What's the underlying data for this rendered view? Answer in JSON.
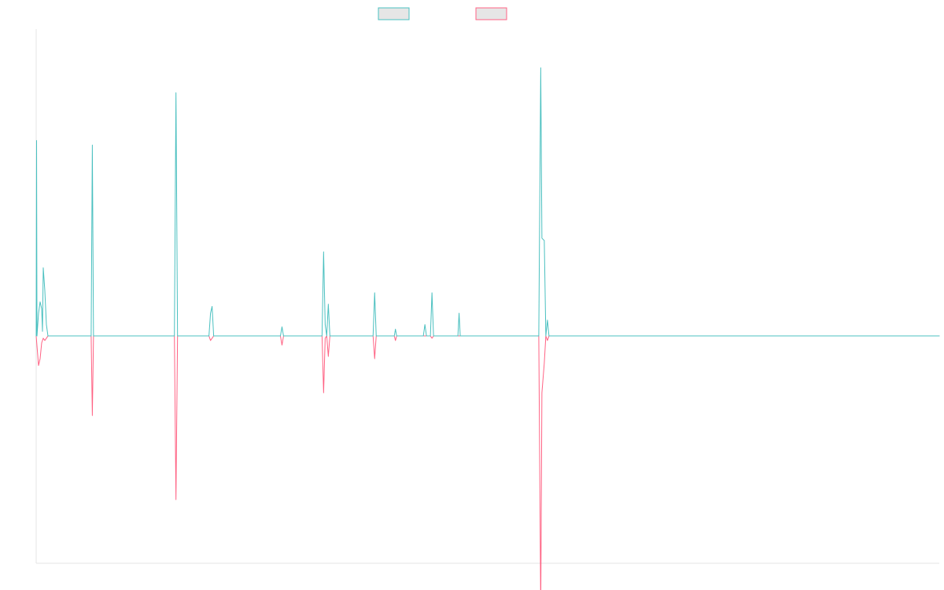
{
  "colors": {
    "series_a": "#4bc0c0",
    "series_b": "#ff6384"
  },
  "chart_data": {
    "type": "line",
    "title": "",
    "xlabel": "",
    "ylabel": "",
    "grid": false,
    "legend_position": "top-center",
    "xlim": [
      0,
      1150
    ],
    "ylim": [
      -1,
      1.35
    ],
    "series": [
      {
        "color": "#4bc0c0",
        "points": [
          [
            0,
            0
          ],
          [
            0.5,
            0.86
          ],
          [
            1,
            0
          ],
          [
            3,
            0.1
          ],
          [
            5,
            0.15
          ],
          [
            7,
            0.12
          ],
          [
            8,
            0.02
          ],
          [
            9,
            0.3
          ],
          [
            11,
            0.2
          ],
          [
            13,
            0.05
          ],
          [
            15,
            0
          ],
          [
            70,
            0
          ],
          [
            71.5,
            0.84
          ],
          [
            73,
            0
          ],
          [
            176,
            0
          ],
          [
            178,
            1.07
          ],
          [
            180,
            0
          ],
          [
            220,
            0
          ],
          [
            222,
            0.1
          ],
          [
            224,
            0.13
          ],
          [
            226,
            0
          ],
          [
            311,
            0
          ],
          [
            313,
            0.04
          ],
          [
            315,
            0
          ],
          [
            364,
            0
          ],
          [
            366,
            0.37
          ],
          [
            368,
            0.05
          ],
          [
            370,
            0
          ],
          [
            372,
            0.14
          ],
          [
            374,
            0
          ],
          [
            429,
            0
          ],
          [
            431,
            0.19
          ],
          [
            433,
            0
          ],
          [
            456,
            0
          ],
          [
            457.5,
            0.03
          ],
          [
            459,
            0
          ],
          [
            483,
            0
          ],
          [
            487,
            0
          ],
          [
            493,
            0
          ],
          [
            495,
            0.05
          ],
          [
            497,
            0
          ],
          [
            502,
            0
          ],
          [
            504,
            0.19
          ],
          [
            506,
            0
          ],
          [
            537,
            0
          ],
          [
            538.5,
            0.1
          ],
          [
            540,
            0
          ],
          [
            640,
            0
          ],
          [
            642.5,
            1.18
          ],
          [
            644,
            0.43
          ],
          [
            647,
            0.42
          ],
          [
            649,
            0
          ],
          [
            651,
            0.07
          ],
          [
            653,
            0
          ],
          [
            1150,
            0
          ]
        ]
      },
      {
        "color": "#ff6384",
        "points": [
          [
            0,
            0
          ],
          [
            3,
            -0.13
          ],
          [
            5,
            -0.1
          ],
          [
            7,
            -0.03
          ],
          [
            9,
            -0.01
          ],
          [
            11,
            -0.02
          ],
          [
            15,
            0
          ],
          [
            70,
            0
          ],
          [
            71.5,
            -0.35
          ],
          [
            73,
            0
          ],
          [
            176,
            0
          ],
          [
            178,
            -0.72
          ],
          [
            180,
            0
          ],
          [
            220,
            0
          ],
          [
            222,
            -0.02
          ],
          [
            224,
            -0.01
          ],
          [
            226,
            0
          ],
          [
            311,
            0
          ],
          [
            313,
            -0.04
          ],
          [
            315,
            0
          ],
          [
            364,
            0
          ],
          [
            366,
            -0.25
          ],
          [
            368,
            -0.01
          ],
          [
            370,
            0
          ],
          [
            372,
            -0.09
          ],
          [
            374,
            0
          ],
          [
            429,
            0
          ],
          [
            431,
            -0.1
          ],
          [
            433,
            0
          ],
          [
            456,
            0
          ],
          [
            457.5,
            -0.02
          ],
          [
            459,
            0
          ],
          [
            502,
            0
          ],
          [
            504,
            -0.01
          ],
          [
            506,
            0
          ],
          [
            640,
            0
          ],
          [
            642.5,
            -1.2
          ],
          [
            644,
            -0.25
          ],
          [
            647,
            -0.12
          ],
          [
            649,
            0
          ],
          [
            651,
            -0.02
          ],
          [
            653,
            0
          ],
          [
            1150,
            0
          ]
        ]
      }
    ]
  }
}
